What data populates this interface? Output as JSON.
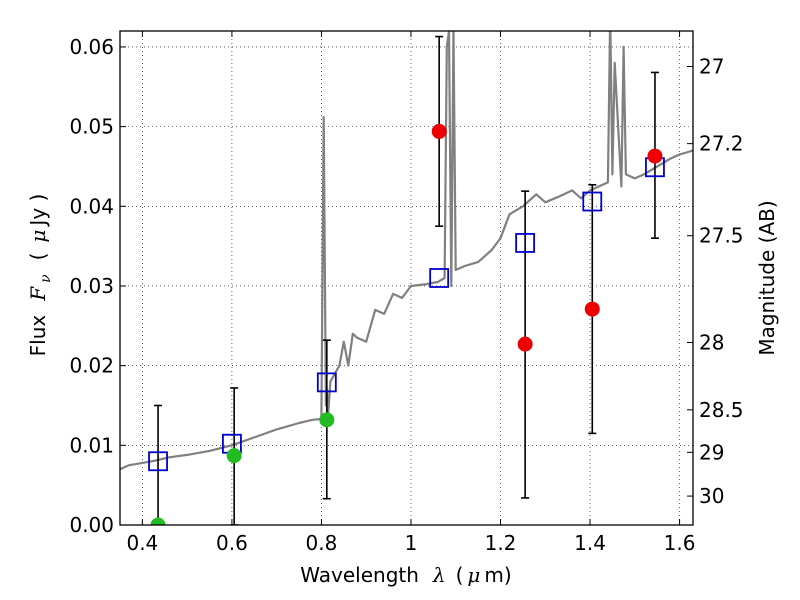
{
  "chart_data": {
    "type": "scatter",
    "title": "",
    "xlabel": {
      "prefix": "Wavelength",
      "symbol": "λ",
      "unit_open": "(",
      "unit_mu": "μ",
      "unit_rest": "m)"
    },
    "ylabel": {
      "prefix": "Flux",
      "symbol": "F",
      "subscript": "ν",
      "unit_open": "(",
      "unit_mu": "μ",
      "unit_rest": "Jy )"
    },
    "y2label": "Magnitude (AB)",
    "xlim": [
      0.35,
      1.63
    ],
    "ylim": [
      0.0,
      0.062
    ],
    "grid": true,
    "x_ticks": [
      {
        "value": 0.4,
        "label": "0.4"
      },
      {
        "value": 0.6,
        "label": "0.6"
      },
      {
        "value": 0.8,
        "label": "0.8"
      },
      {
        "value": 1.0,
        "label": "1"
      },
      {
        "value": 1.2,
        "label": "1.2"
      },
      {
        "value": 1.4,
        "label": "1.4"
      },
      {
        "value": 1.6,
        "label": "1.6"
      }
    ],
    "y_ticks": [
      {
        "value": 0.0,
        "label": "0.00"
      },
      {
        "value": 0.01,
        "label": "0.01"
      },
      {
        "value": 0.02,
        "label": "0.02"
      },
      {
        "value": 0.03,
        "label": "0.03"
      },
      {
        "value": 0.04,
        "label": "0.04"
      },
      {
        "value": 0.05,
        "label": "0.05"
      },
      {
        "value": 0.06,
        "label": "0.06"
      }
    ],
    "y2_ticks": [
      {
        "mag": 27,
        "label": "27"
      },
      {
        "mag": 27.2,
        "label": "27.2"
      },
      {
        "mag": 27.5,
        "label": "27.5"
      },
      {
        "mag": 28,
        "label": "28"
      },
      {
        "mag": 28.5,
        "label": "28.5"
      },
      {
        "mag": 29,
        "label": "29"
      },
      {
        "mag": 30,
        "label": "30"
      }
    ],
    "template_spectrum": {
      "color": "#808080",
      "x": [
        0.35,
        0.37,
        0.4,
        0.43,
        0.46,
        0.5,
        0.55,
        0.6,
        0.65,
        0.7,
        0.75,
        0.78,
        0.8,
        0.805,
        0.81,
        0.812,
        0.815,
        0.82,
        0.83,
        0.84,
        0.85,
        0.86,
        0.87,
        0.88,
        0.9,
        0.92,
        0.94,
        0.96,
        0.98,
        1.0,
        1.03,
        1.06,
        1.075,
        1.08,
        1.085,
        1.09,
        1.095,
        1.1,
        1.12,
        1.15,
        1.18,
        1.2,
        1.22,
        1.25,
        1.28,
        1.3,
        1.33,
        1.36,
        1.38,
        1.4,
        1.42,
        1.44,
        1.445,
        1.45,
        1.455,
        1.47,
        1.475,
        1.48,
        1.5,
        1.52,
        1.55,
        1.58,
        1.6,
        1.63
      ],
      "y": [
        0.007,
        0.0075,
        0.0078,
        0.0081,
        0.0085,
        0.0088,
        0.0093,
        0.01,
        0.011,
        0.012,
        0.0128,
        0.0132,
        0.0133,
        0.0512,
        0.015,
        0.017,
        0.014,
        0.018,
        0.019,
        0.02,
        0.023,
        0.02,
        0.024,
        0.0235,
        0.023,
        0.027,
        0.0265,
        0.029,
        0.0285,
        0.03,
        0.0302,
        0.0305,
        0.031,
        0.06,
        0.062,
        0.03,
        0.062,
        0.032,
        0.0325,
        0.033,
        0.0345,
        0.036,
        0.039,
        0.04,
        0.0415,
        0.0405,
        0.0412,
        0.042,
        0.041,
        0.042,
        0.0425,
        0.043,
        0.064,
        0.044,
        0.058,
        0.0425,
        0.06,
        0.044,
        0.0435,
        0.044,
        0.045,
        0.046,
        0.0465,
        0.047
      ]
    },
    "series": [
      {
        "marker": "square",
        "color": "#0000cc",
        "points": [
          {
            "x": 0.435,
            "y": 0.008
          },
          {
            "x": 0.6,
            "y": 0.0102
          },
          {
            "x": 0.812,
            "y": 0.0179
          },
          {
            "x": 1.063,
            "y": 0.031
          },
          {
            "x": 1.255,
            "y": 0.0354
          },
          {
            "x": 1.405,
            "y": 0.0406
          },
          {
            "x": 1.545,
            "y": 0.0449
          }
        ]
      },
      {
        "marker": "circle",
        "color": "#22bb22",
        "points": [
          {
            "x": 0.435,
            "y": 0.0,
            "err_low": 0.0,
            "err_high": 0.015
          },
          {
            "x": 0.605,
            "y": 0.0087,
            "err_low": 0.0,
            "err_high": 0.0172
          },
          {
            "x": 0.812,
            "y": 0.0132,
            "err_low": 0.0033,
            "err_high": 0.0232
          }
        ]
      },
      {
        "marker": "circle",
        "color": "#ee0000",
        "points": [
          {
            "x": 1.063,
            "y": 0.0494,
            "err_low": 0.0375,
            "err_high": 0.0613
          },
          {
            "x": 1.255,
            "y": 0.0227,
            "err_low": 0.0034,
            "err_high": 0.0419
          },
          {
            "x": 1.405,
            "y": 0.0271,
            "err_low": 0.0115,
            "err_high": 0.0427
          },
          {
            "x": 1.545,
            "y": 0.0463,
            "err_low": 0.036,
            "err_high": 0.0568
          }
        ]
      }
    ]
  }
}
